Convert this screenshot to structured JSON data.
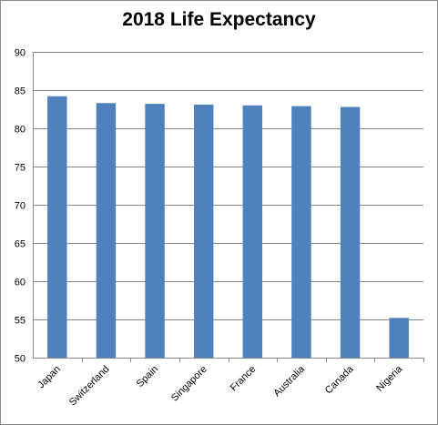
{
  "chart_data": {
    "type": "bar",
    "title": "2018 Life Expectancy",
    "xlabel": "",
    "ylabel": "",
    "categories": [
      "Japan",
      "Switzerland",
      "Spain",
      "Singapore",
      "France",
      "Australia",
      "Canada",
      "Nigeria"
    ],
    "values": [
      84.2,
      83.3,
      83.2,
      83.1,
      83.0,
      82.9,
      82.8,
      55.2
    ],
    "ylim": [
      50,
      90
    ],
    "yticks": [
      50,
      55,
      60,
      65,
      70,
      75,
      80,
      85,
      90
    ],
    "grid": true,
    "legend": "none",
    "bar_color": "#4F81BD",
    "grid_color": "#868686"
  }
}
